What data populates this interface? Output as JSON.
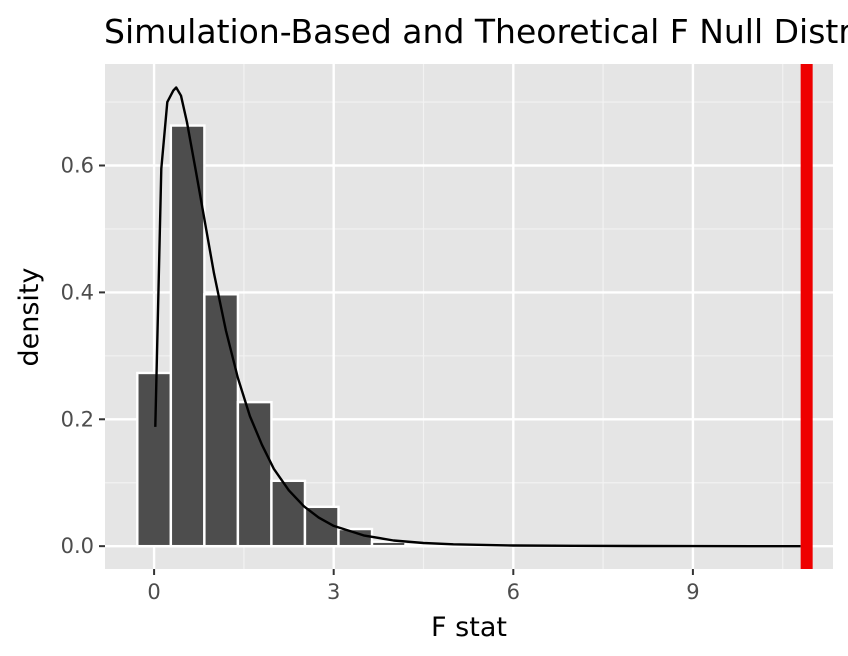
{
  "chart_data": {
    "type": "bar",
    "title": "Simulation-Based and Theoretical F Null Distribution",
    "xlabel": "F stat",
    "ylabel": "density",
    "xlim": [
      -0.82,
      11.34
    ],
    "ylim": [
      -0.036,
      0.76
    ],
    "x_ticks": [
      0,
      3,
      6,
      9
    ],
    "x_tick_labels": [
      "0",
      "3",
      "6",
      "9"
    ],
    "y_ticks": [
      0.0,
      0.2,
      0.4,
      0.6
    ],
    "y_tick_labels": [
      "0.0",
      "0.2",
      "0.4",
      "0.6"
    ],
    "grid": true,
    "histogram": {
      "bin_width": 0.56,
      "bin_centers": [
        0.0,
        0.56,
        1.12,
        1.68,
        2.24,
        2.8,
        3.36,
        3.92,
        4.48
      ],
      "density": [
        0.273,
        0.663,
        0.397,
        0.227,
        0.103,
        0.062,
        0.027,
        0.007,
        0.002
      ],
      "fill": "#4d4d4d",
      "outline": "#ffffff"
    },
    "theoretical_curve": {
      "x": [
        0.02,
        0.12,
        0.22,
        0.32,
        0.37,
        0.45,
        0.55,
        0.7,
        0.85,
        1.0,
        1.2,
        1.4,
        1.6,
        1.8,
        2.0,
        2.25,
        2.5,
        2.75,
        3.0,
        3.5,
        4.0,
        4.5,
        5.0,
        6.0,
        7.0,
        8.0,
        9.0,
        10.0,
        10.8
      ],
      "y": [
        0.188,
        0.595,
        0.7,
        0.718,
        0.723,
        0.71,
        0.668,
        0.59,
        0.51,
        0.43,
        0.34,
        0.265,
        0.205,
        0.16,
        0.122,
        0.088,
        0.063,
        0.045,
        0.032,
        0.017,
        0.009,
        0.005,
        0.003,
        0.001,
        0.0005,
        0.0002,
        0.0001,
        0.0,
        0.0
      ],
      "color": "#000000"
    },
    "observed_stat": {
      "x": 10.9,
      "color": "#ee0000"
    }
  }
}
